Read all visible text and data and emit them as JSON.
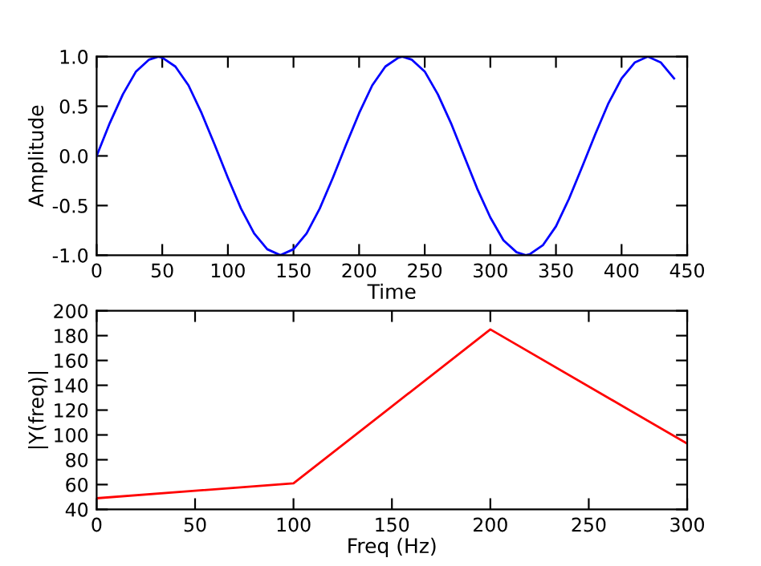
{
  "chart_data": [
    {
      "type": "line",
      "xlabel": "Time",
      "ylabel": "Amplitude",
      "xlim": [
        0,
        450
      ],
      "ylim": [
        -1.0,
        1.0
      ],
      "xticks": [
        0,
        50,
        100,
        150,
        200,
        250,
        300,
        350,
        400,
        450
      ],
      "yticks": [
        {
          "value": -1.0,
          "label": "-1.0"
        },
        {
          "value": -0.5,
          "label": "-0.5"
        },
        {
          "value": 0.0,
          "label": "0.0"
        },
        {
          "value": 0.5,
          "label": "0.5"
        },
        {
          "value": 1.0,
          "label": "1.0"
        }
      ],
      "grid": false,
      "x": [
        0,
        10,
        20,
        30,
        40,
        47,
        50,
        60,
        70,
        80,
        90,
        100,
        110,
        120,
        130,
        140,
        150,
        160,
        170,
        180,
        190,
        200,
        210,
        220,
        230,
        233,
        240,
        250,
        260,
        270,
        280,
        290,
        300,
        310,
        320,
        327,
        330,
        340,
        350,
        360,
        370,
        380,
        390,
        400,
        410,
        420,
        430,
        440
      ],
      "series": [
        {
          "color": "#0000ff",
          "values": [
            0.0,
            0.33,
            0.62,
            0.85,
            0.97,
            1.0,
            0.99,
            0.9,
            0.71,
            0.43,
            0.11,
            -0.22,
            -0.53,
            -0.78,
            -0.94,
            -1.0,
            -0.94,
            -0.78,
            -0.53,
            -0.22,
            0.11,
            0.43,
            0.71,
            0.9,
            0.99,
            1.0,
            0.97,
            0.85,
            0.62,
            0.33,
            0.0,
            -0.33,
            -0.62,
            -0.85,
            -0.97,
            -1.0,
            -0.99,
            -0.9,
            -0.71,
            -0.43,
            -0.11,
            0.22,
            0.53,
            0.78,
            0.94,
            1.0,
            0.94,
            0.78
          ]
        }
      ]
    },
    {
      "type": "line",
      "xlabel": "Freq (Hz)",
      "ylabel": "|Y(freq)|",
      "xlim": [
        0,
        300
      ],
      "ylim": [
        40,
        200
      ],
      "xticks": [
        0,
        50,
        100,
        150,
        200,
        250,
        300
      ],
      "yticks": [
        40,
        60,
        80,
        100,
        120,
        140,
        160,
        180,
        200
      ],
      "grid": false,
      "x": [
        0,
        100,
        200,
        300
      ],
      "series": [
        {
          "color": "#ff0000",
          "values": [
            49,
            61,
            185,
            93
          ]
        }
      ]
    }
  ]
}
